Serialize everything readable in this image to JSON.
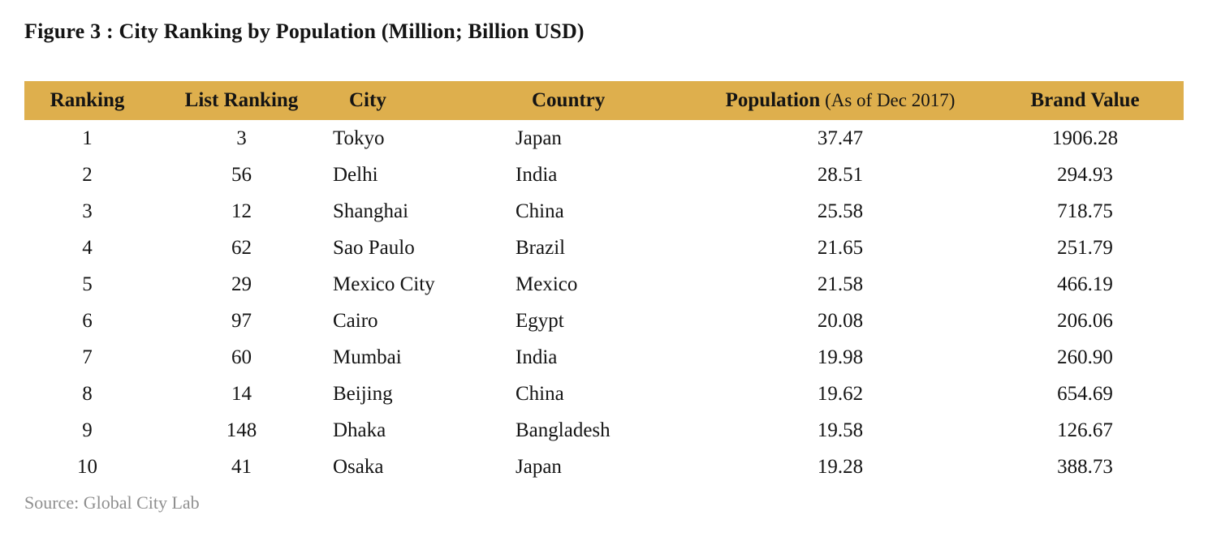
{
  "figure": {
    "title": "Figure 3 : City Ranking by Population (Million; Billion USD)",
    "source": "Source: Global City Lab"
  },
  "colors": {
    "header_bg": "#DEAF4D",
    "body_text": "#141414",
    "source_text": "#8F8F8F"
  },
  "table": {
    "columns": [
      {
        "key": "ranking",
        "label": "Ranking",
        "align": "center"
      },
      {
        "key": "list-ranking",
        "label": "List Ranking",
        "align": "center"
      },
      {
        "key": "city",
        "label": "City",
        "align": "left"
      },
      {
        "key": "country",
        "label": "Country",
        "align": "left"
      },
      {
        "key": "population",
        "label": "Population",
        "suffix": " (As of Dec 2017)",
        "align": "center"
      },
      {
        "key": "brand-value",
        "label": "Brand Value",
        "align": "center"
      }
    ],
    "rows": [
      [
        "1",
        "3",
        "Tokyo",
        "Japan",
        "37.47",
        "1906.28"
      ],
      [
        "2",
        "56",
        "Delhi",
        "India",
        "28.51",
        "294.93"
      ],
      [
        "3",
        "12",
        "Shanghai",
        "China",
        "25.58",
        "718.75"
      ],
      [
        "4",
        "62",
        "Sao Paulo",
        "Brazil",
        "21.65",
        "251.79"
      ],
      [
        "5",
        "29",
        "Mexico City",
        "Mexico",
        "21.58",
        "466.19"
      ],
      [
        "6",
        "97",
        "Cairo",
        "Egypt",
        "20.08",
        "206.06"
      ],
      [
        "7",
        "60",
        "Mumbai",
        "India",
        "19.98",
        "260.90"
      ],
      [
        "8",
        "14",
        "Beijing",
        "China",
        "19.62",
        "654.69"
      ],
      [
        "9",
        "148",
        "Dhaka",
        "Bangladesh",
        "19.58",
        "126.67"
      ],
      [
        "10",
        "41",
        "Osaka",
        "Japan",
        "19.28",
        "388.73"
      ]
    ]
  }
}
